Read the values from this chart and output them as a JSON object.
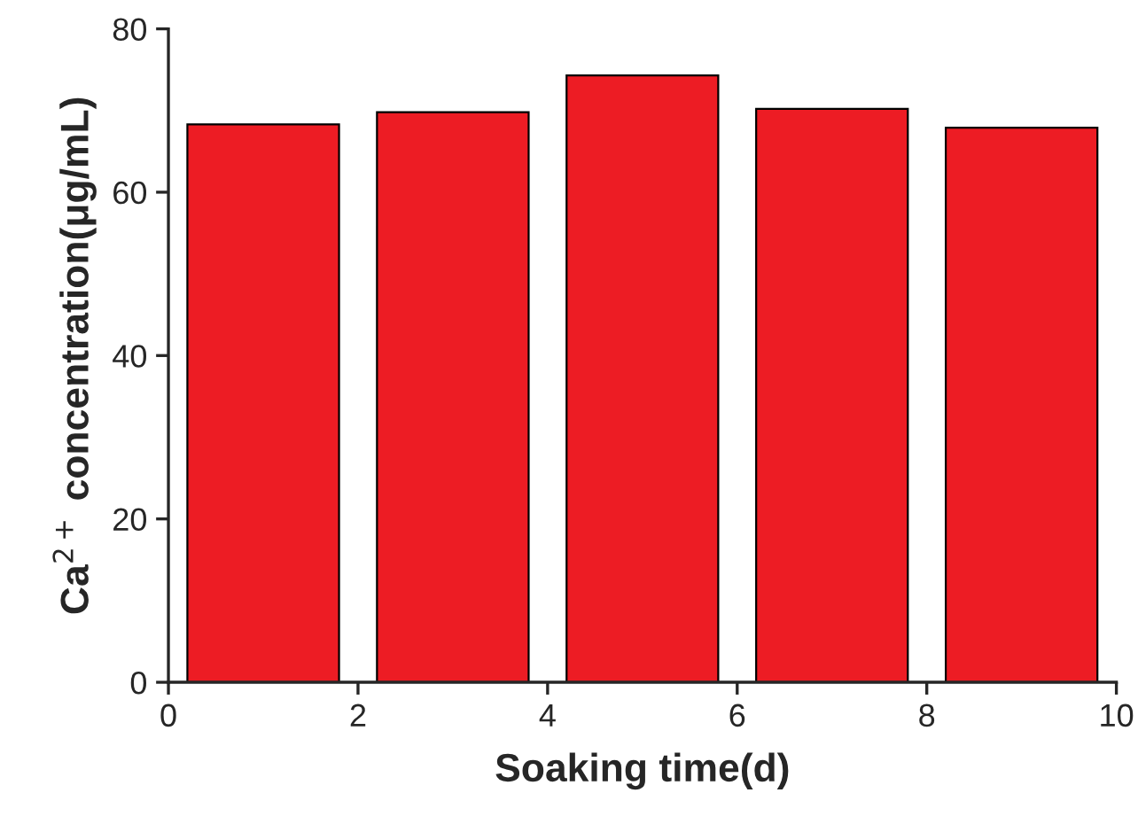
{
  "chart_data": {
    "type": "bar",
    "xlabel": "Soaking time(d)",
    "ylabel": "Ca$^{2+}$ concentration(μg/mL)",
    "x": [
      1,
      3,
      5,
      7,
      9
    ],
    "values": [
      68.3,
      69.8,
      74.3,
      70.2,
      67.9
    ],
    "color": "#ed1c24",
    "xlim": [
      0,
      10
    ],
    "xticks": [
      0,
      2,
      4,
      6,
      8,
      10
    ],
    "ylim": [
      0,
      80
    ],
    "yticks": [
      0,
      20,
      40,
      60,
      80
    ],
    "grid": false,
    "legend": false
  }
}
